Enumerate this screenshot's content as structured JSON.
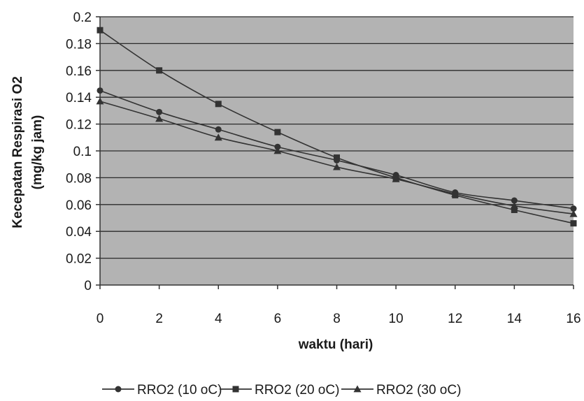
{
  "chart_data": {
    "type": "line",
    "title": "",
    "xlabel": "waktu (hari)",
    "ylabel_lines": [
      "Kecepatan Respirasi O2",
      "(mg/kg jam)"
    ],
    "x": [
      0,
      2,
      4,
      6,
      8,
      10,
      12,
      14,
      16
    ],
    "xlim": [
      0,
      16
    ],
    "ylim": [
      0,
      0.2
    ],
    "x_ticks": [
      0,
      2,
      4,
      6,
      8,
      10,
      12,
      14,
      16
    ],
    "x_tick_labels": [
      "0",
      "2",
      "4",
      "6",
      "8",
      "10",
      "12",
      "14",
      "16"
    ],
    "y_ticks": [
      0,
      0.02,
      0.04,
      0.06,
      0.08,
      0.1,
      0.12,
      0.14,
      0.16,
      0.18,
      0.2
    ],
    "y_tick_labels": [
      "0",
      "0.02",
      "0.04",
      "0.06",
      "0.08",
      "0.1",
      "0.12",
      "0.14",
      "0.16",
      "0.18",
      "0.2"
    ],
    "grid": true,
    "legend_position": "bottom",
    "plot_background": "#b3b3b3",
    "line_color": "#333333",
    "series": [
      {
        "name": "RRO2 (10 oC)",
        "marker": "circle",
        "values": [
          0.145,
          0.129,
          0.116,
          0.103,
          0.093,
          0.082,
          0.069,
          0.063,
          0.057
        ]
      },
      {
        "name": "RRO2 (20 oC)",
        "marker": "square",
        "values": [
          0.19,
          0.16,
          0.135,
          0.114,
          0.095,
          0.08,
          0.067,
          0.056,
          0.046
        ]
      },
      {
        "name": "RRO2 (30 oC)",
        "marker": "triangle",
        "values": [
          0.137,
          0.124,
          0.11,
          0.1,
          0.088,
          0.079,
          0.068,
          0.059,
          0.053
        ]
      }
    ]
  }
}
